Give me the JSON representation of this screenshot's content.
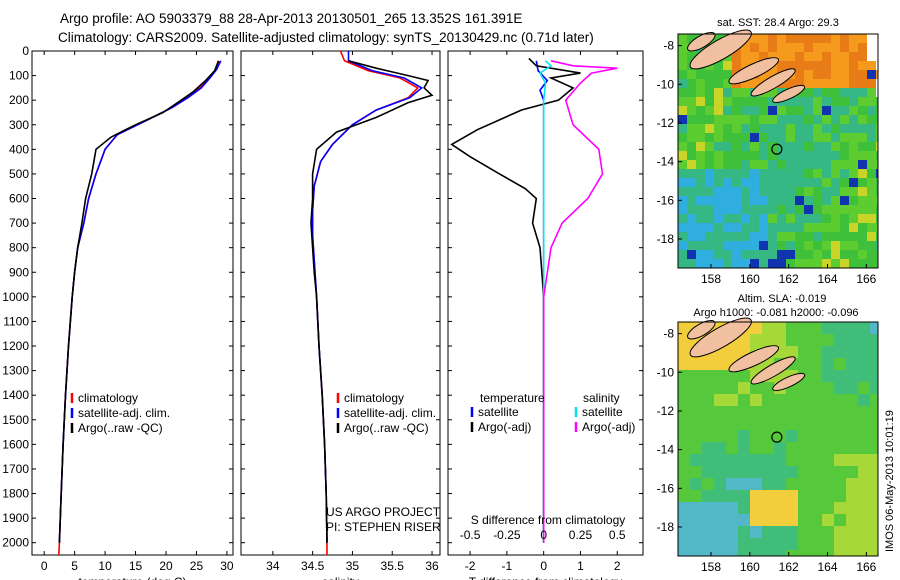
{
  "header": {
    "line1": "Argo profile: AO 5903379_88 28-Apr-2013 20130501_265 13.352S 161.391E",
    "line2": "Climatology: CARS2009. Satellite-adjusted climatology: synTS_20130429.nc (0.71d later)"
  },
  "colors": {
    "clim": "#ff0000",
    "sat": "#0000ff",
    "argo": "#000000",
    "sal_sat": "#00e5ee",
    "sal_argo": "#ff00ff"
  },
  "chart_data": [
    {
      "type": "line",
      "xlabel": "temperature (deg C)",
      "xlim": [
        -2,
        31
      ],
      "ylim": [
        0,
        2050
      ],
      "xticks": [
        0,
        5,
        10,
        15,
        20,
        25,
        30
      ],
      "yticks": [
        0,
        100,
        200,
        300,
        400,
        500,
        600,
        700,
        800,
        900,
        1000,
        1100,
        1200,
        1300,
        1400,
        1500,
        1600,
        1700,
        1800,
        1900,
        2000
      ],
      "legend": [
        "climatology",
        "satellite-adj. clim.",
        "Argo(..raw -QC)"
      ],
      "series": [
        {
          "name": "climatology",
          "color": "#ff0000",
          "points": [
            [
              28.7,
              40
            ],
            [
              28.2,
              75
            ],
            [
              27,
              110
            ],
            [
              25.5,
              150
            ],
            [
              23.5,
              190
            ],
            [
              21,
              230
            ],
            [
              17,
              280
            ],
            [
              12,
              340
            ],
            [
              10,
              400
            ],
            [
              8.5,
              500
            ],
            [
              7.3,
              600
            ],
            [
              6.5,
              700
            ],
            [
              5.5,
              800
            ],
            [
              5,
              900
            ],
            [
              4.6,
              1000
            ],
            [
              4,
              1200
            ],
            [
              3.5,
              1400
            ],
            [
              3.1,
              1600
            ],
            [
              2.8,
              1800
            ],
            [
              2.5,
              2000
            ],
            [
              2.4,
              2050
            ]
          ]
        },
        {
          "name": "satellite-adj. clim.",
          "color": "#0000ff",
          "points": [
            [
              29,
              40
            ],
            [
              28.3,
              75
            ],
            [
              27.2,
              110
            ],
            [
              25.8,
              150
            ],
            [
              23.6,
              190
            ],
            [
              21,
              230
            ],
            [
              17,
              280
            ],
            [
              12,
              340
            ],
            [
              10,
              400
            ],
            [
              8.5,
              500
            ],
            [
              7.3,
              600
            ],
            [
              6.5,
              700
            ],
            [
              5.5,
              800
            ],
            [
              5,
              900
            ],
            [
              4.6,
              1000
            ],
            [
              4,
              1200
            ],
            [
              3.5,
              1400
            ],
            [
              3.1,
              1600
            ],
            [
              2.8,
              1800
            ],
            [
              2.5,
              2000
            ]
          ]
        },
        {
          "name": "Argo(..raw -QC)",
          "color": "#000000",
          "points": [
            [
              28.6,
              40
            ],
            [
              28,
              80
            ],
            [
              26.5,
              120
            ],
            [
              24.5,
              165
            ],
            [
              22.5,
              200
            ],
            [
              19.5,
              250
            ],
            [
              15,
              300
            ],
            [
              11,
              350
            ],
            [
              8.5,
              400
            ],
            [
              7.8,
              500
            ],
            [
              6.8,
              600
            ],
            [
              6.2,
              700
            ],
            [
              5.5,
              800
            ],
            [
              5,
              900
            ],
            [
              4.6,
              1000
            ],
            [
              4,
              1200
            ],
            [
              3.5,
              1400
            ],
            [
              3.1,
              1600
            ],
            [
              2.8,
              1800
            ],
            [
              2.5,
              2000
            ]
          ]
        }
      ]
    },
    {
      "type": "line",
      "xlabel": "salinity",
      "xlim": [
        33.6,
        36.1
      ],
      "ylim": [
        0,
        2050
      ],
      "xticks": [
        34,
        34.5,
        35,
        35.5,
        36
      ],
      "xtick_labels": [
        "34",
        "34.5",
        "35",
        "35.5",
        "36"
      ],
      "legend": [
        "climatology",
        "satellite-adj. clim.",
        "Argo(..raw -QC)"
      ],
      "series": [
        {
          "name": "climatology",
          "color": "#ff0000",
          "points": [
            [
              34.85,
              0
            ],
            [
              34.9,
              40
            ],
            [
              35.2,
              80
            ],
            [
              35.6,
              110
            ],
            [
              35.82,
              150
            ],
            [
              35.7,
              190
            ],
            [
              35.3,
              240
            ],
            [
              35.0,
              300
            ],
            [
              34.75,
              380
            ],
            [
              34.6,
              450
            ],
            [
              34.52,
              550
            ],
            [
              34.5,
              650
            ],
            [
              34.5,
              750
            ],
            [
              34.52,
              850
            ],
            [
              34.55,
              1000
            ],
            [
              34.58,
              1200
            ],
            [
              34.62,
              1400
            ],
            [
              34.65,
              1600
            ],
            [
              34.67,
              1800
            ],
            [
              34.68,
              2000
            ],
            [
              34.68,
              2050
            ]
          ]
        },
        {
          "name": "satellite-adj. clim.",
          "color": "#0000ff",
          "points": [
            [
              34.95,
              0
            ],
            [
              34.95,
              40
            ],
            [
              35.25,
              80
            ],
            [
              35.65,
              110
            ],
            [
              35.87,
              150
            ],
            [
              35.72,
              190
            ],
            [
              35.3,
              240
            ],
            [
              35.0,
              300
            ],
            [
              34.75,
              380
            ],
            [
              34.6,
              450
            ],
            [
              34.52,
              550
            ],
            [
              34.5,
              650
            ],
            [
              34.5,
              750
            ],
            [
              34.52,
              850
            ],
            [
              34.55,
              1000
            ],
            [
              34.58,
              1200
            ],
            [
              34.62,
              1400
            ],
            [
              34.65,
              1600
            ],
            [
              34.67,
              1800
            ],
            [
              34.68,
              2000
            ]
          ]
        },
        {
          "name": "Argo(..raw -QC)",
          "color": "#000000",
          "points": [
            [
              34.95,
              40
            ],
            [
              35.3,
              70
            ],
            [
              35.7,
              100
            ],
            [
              35.95,
              120
            ],
            [
              35.9,
              150
            ],
            [
              36.0,
              180
            ],
            [
              35.7,
              210
            ],
            [
              35.3,
              270
            ],
            [
              34.8,
              330
            ],
            [
              34.55,
              400
            ],
            [
              34.5,
              500
            ],
            [
              34.5,
              600
            ],
            [
              34.48,
              700
            ],
            [
              34.5,
              800
            ],
            [
              34.52,
              900
            ],
            [
              34.55,
              1000
            ],
            [
              34.58,
              1200
            ],
            [
              34.62,
              1400
            ],
            [
              34.65,
              1600
            ],
            [
              34.67,
              1800
            ],
            [
              34.68,
              2000
            ]
          ]
        }
      ]
    },
    {
      "type": "line",
      "xlabel": "T difference from climatology",
      "top_axis_label": "S difference from climatology",
      "xlim": [
        -2.6,
        2.7
      ],
      "ylim": [
        0,
        2050
      ],
      "xticks": [
        -2,
        -1,
        0,
        1,
        2
      ],
      "top_ticks": [
        -0.5,
        -0.25,
        0,
        0.25,
        0.5
      ],
      "top_tick_labels": [
        "-0.5",
        "-0.25",
        "0",
        "0.25",
        "0.5"
      ],
      "legend": [
        "temperature",
        "satellite",
        "Argo(-adj)",
        "salinity",
        "satellite",
        "Argo(-adj)"
      ],
      "series": [
        {
          "name": "satellite",
          "color": "#0000ff",
          "points": [
            [
              -0.2,
              40
            ],
            [
              -0.15,
              80
            ],
            [
              0.1,
              120
            ],
            [
              -0.1,
              160
            ],
            [
              0,
              200
            ],
            [
              0,
              400
            ],
            [
              0,
              2000
            ]
          ]
        },
        {
          "name": "Argo(-adj)",
          "color": "#000000",
          "points": [
            [
              -0.4,
              30
            ],
            [
              -0.2,
              60
            ],
            [
              1.0,
              90
            ],
            [
              0.2,
              110
            ],
            [
              0.8,
              150
            ],
            [
              0.4,
              200
            ],
            [
              -0.6,
              240
            ],
            [
              -1.8,
              320
            ],
            [
              -2.5,
              380
            ],
            [
              -2.0,
              430
            ],
            [
              -1.2,
              500
            ],
            [
              -0.5,
              560
            ],
            [
              -0.2,
              600
            ],
            [
              -0.3,
              700
            ],
            [
              -0.1,
              800
            ],
            [
              0,
              1000
            ],
            [
              0,
              1500
            ],
            [
              0,
              2000
            ]
          ]
        },
        {
          "name": "salinity satellite",
          "color": "#00e5ee",
          "points": [
            [
              0.05,
              40
            ],
            [
              0.2,
              60
            ],
            [
              -0.1,
              90
            ],
            [
              0.05,
              130
            ],
            [
              0,
              200
            ],
            [
              0,
              400
            ],
            [
              0,
              2000
            ]
          ]
        },
        {
          "name": "salinity Argo(-adj)",
          "color": "#ff00ff",
          "points": [
            [
              0.2,
              40
            ],
            [
              0.8,
              60
            ],
            [
              2.0,
              70
            ],
            [
              1.3,
              90
            ],
            [
              1.0,
              130
            ],
            [
              0.6,
              200
            ],
            [
              0.8,
              300
            ],
            [
              1.5,
              400
            ],
            [
              1.6,
              500
            ],
            [
              1.2,
              600
            ],
            [
              0.5,
              700
            ],
            [
              0.2,
              800
            ],
            [
              0,
              1000
            ],
            [
              0,
              2000
            ]
          ]
        }
      ]
    },
    {
      "type": "heatmap",
      "title": "sat. SST: 28.4 Argo: 29.3",
      "xticks": [
        158,
        160,
        162,
        164,
        166
      ],
      "yticks": [
        -8,
        -10,
        -12,
        -14,
        -16,
        -18
      ],
      "xlim": [
        156.3,
        166.6
      ],
      "ylim": [
        -19.5,
        -7.4
      ]
    },
    {
      "type": "heatmap",
      "title_line1": "Altim. SLA: -0.019",
      "title_line2": "Argo h1000: -0.081 h2000: -0.096",
      "xticks": [
        158,
        160,
        162,
        164,
        166
      ],
      "yticks": [
        -8,
        -10,
        -12,
        -14,
        -16,
        -18
      ],
      "xlim": [
        156.3,
        166.6
      ],
      "ylim": [
        -19.5,
        -7.4
      ]
    }
  ],
  "annotations": {
    "project1": "US ARGO PROJECT",
    "project2": "PI: STEPHEN RISER",
    "footer": "IMOS 06-May-2013 10:01:19"
  }
}
